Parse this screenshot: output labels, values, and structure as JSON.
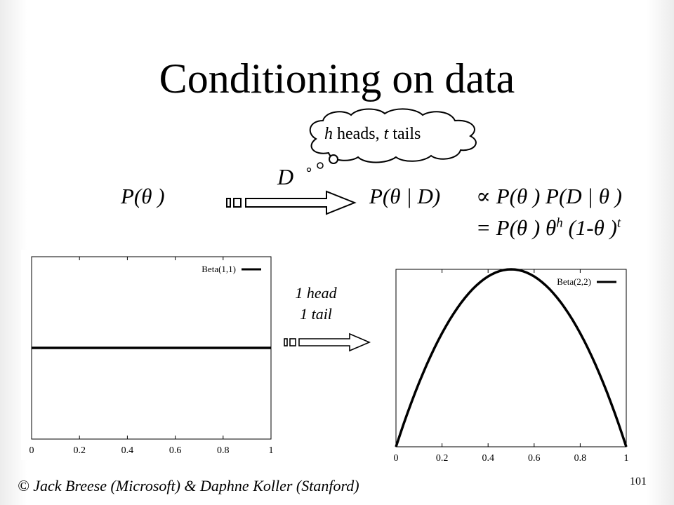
{
  "slide": {
    "title": "Conditioning on data",
    "thought": {
      "h": "h",
      "heads_text": " heads, ",
      "t": "t",
      "tails_text": " tails"
    },
    "data_symbol": "D",
    "prior": "P(θ )",
    "posterior": "P(θ | D)",
    "relation_line1": "∝ P(θ ) P(D | θ )",
    "relation_line2_base": "= P(θ )  θ",
    "relation_line2_exp_h": "h",
    "relation_line2_mid": " (1-θ )",
    "relation_line2_exp_t": "t",
    "update_annotation": [
      "1 head",
      "1 tail"
    ],
    "credit": "© Jack Breese (Microsoft) & Daphne Koller (Stanford)",
    "page_number": "101"
  },
  "chart_data": [
    {
      "type": "line",
      "legend": "Beta(1,1)",
      "legend_position": "top-right",
      "xlim": [
        0,
        1
      ],
      "x_ticks": [
        "0",
        "0.2",
        "0.4",
        "0.6",
        "0.8",
        "1"
      ],
      "series": [
        {
          "name": "Beta(1,1)",
          "x": [
            0,
            0.1,
            0.2,
            0.3,
            0.4,
            0.5,
            0.6,
            0.7,
            0.8,
            0.9,
            1
          ],
          "y": [
            1,
            1,
            1,
            1,
            1,
            1,
            1,
            1,
            1,
            1,
            1
          ]
        }
      ],
      "ylim": [
        0,
        2
      ]
    },
    {
      "type": "line",
      "legend": "Beta(2,2)",
      "legend_position": "top-right",
      "xlim": [
        0,
        1
      ],
      "x_ticks": [
        "0",
        "0.2",
        "0.4",
        "0.6",
        "0.8",
        "1"
      ],
      "series": [
        {
          "name": "Beta(2,2)",
          "x": [
            0,
            0.1,
            0.2,
            0.3,
            0.4,
            0.5,
            0.6,
            0.7,
            0.8,
            0.9,
            1
          ],
          "y": [
            0,
            0.54,
            0.96,
            1.26,
            1.44,
            1.5,
            1.44,
            1.26,
            0.96,
            0.54,
            0
          ]
        }
      ],
      "ylim": [
        0,
        1.5
      ]
    }
  ]
}
